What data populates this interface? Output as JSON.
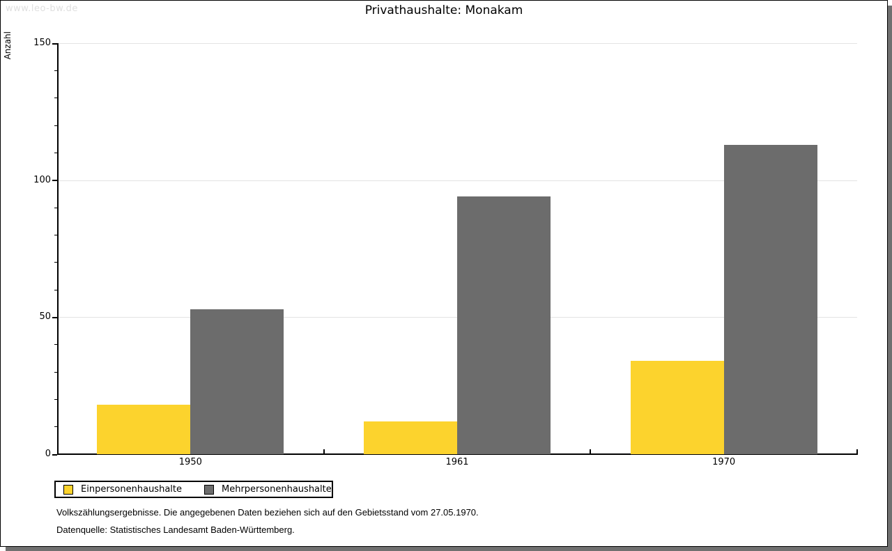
{
  "page": {
    "watermark": "www.leo-bw.de",
    "title": "Privathaushalte: Monakam"
  },
  "chart_data": {
    "type": "bar",
    "title": "Privathaushalte: Monakam",
    "xlabel": "",
    "ylabel": "Anzahl",
    "categories": [
      "1950",
      "1961",
      "1970"
    ],
    "series": [
      {
        "name": "Einpersonenhaushalte",
        "color": "#FCD32D",
        "values": [
          18,
          12,
          34
        ]
      },
      {
        "name": "Mehrpersonenhaushalte",
        "color": "#6C6C6C",
        "values": [
          53,
          94,
          113
        ]
      }
    ],
    "ylim": [
      0,
      150
    ],
    "yticks": [
      0,
      50,
      100,
      150
    ],
    "minor_tick_step": 10,
    "grid": "horizontal",
    "gridline_color": "#E3E3E3",
    "legend_position": "bottom-left"
  },
  "footer": {
    "line1": "Volkszählungsergebnisse. Die angegebenen Daten beziehen sich auf den Gebietsstand vom 27.05.1970.",
    "line2": "Datenquelle: Statistisches Landesamt Baden-Württemberg."
  }
}
